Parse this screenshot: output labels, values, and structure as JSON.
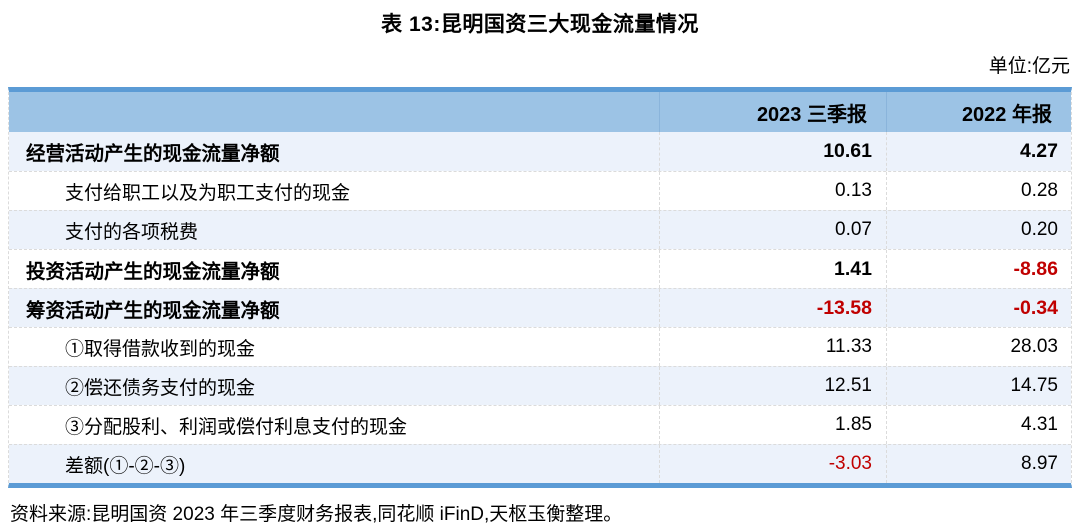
{
  "title": "表 13:昆明国资三大现金流量情况",
  "unit_label": "单位:亿元",
  "header": {
    "label_col": "",
    "col_2023": "2023 三季报",
    "col_2022": "2022 年报"
  },
  "rows": [
    {
      "label": "经营活动产生的现金流量净额",
      "bold": true,
      "indent": false,
      "values": [
        {
          "text": "10.61",
          "red": false
        },
        {
          "text": "4.27",
          "red": false
        }
      ]
    },
    {
      "label": "支付给职工以及为职工支付的现金",
      "bold": false,
      "indent": true,
      "values": [
        {
          "text": "0.13",
          "red": false
        },
        {
          "text": "0.28",
          "red": false
        }
      ]
    },
    {
      "label": "支付的各项税费",
      "bold": false,
      "indent": true,
      "values": [
        {
          "text": "0.07",
          "red": false
        },
        {
          "text": "0.20",
          "red": false
        }
      ]
    },
    {
      "label": "投资活动产生的现金流量净额",
      "bold": true,
      "indent": false,
      "values": [
        {
          "text": "1.41",
          "red": false
        },
        {
          "text": "-8.86",
          "red": true
        }
      ]
    },
    {
      "label": "筹资活动产生的现金流量净额",
      "bold": true,
      "indent": false,
      "values": [
        {
          "text": "-13.58",
          "red": true
        },
        {
          "text": "-0.34",
          "red": true
        }
      ]
    },
    {
      "label": "①取得借款收到的现金",
      "bold": false,
      "indent": true,
      "values": [
        {
          "text": "11.33",
          "red": false
        },
        {
          "text": "28.03",
          "red": false
        }
      ]
    },
    {
      "label": "②偿还债务支付的现金",
      "bold": false,
      "indent": true,
      "values": [
        {
          "text": "12.51",
          "red": false
        },
        {
          "text": "14.75",
          "red": false
        }
      ]
    },
    {
      "label": "③分配股利、利润或偿付利息支付的现金",
      "bold": false,
      "indent": true,
      "values": [
        {
          "text": "1.85",
          "red": false
        },
        {
          "text": "4.31",
          "red": false
        }
      ]
    },
    {
      "label": "差额(①-②-③)",
      "bold": false,
      "indent": true,
      "values": [
        {
          "text": "-3.03",
          "red": true
        },
        {
          "text": "8.97",
          "red": false
        }
      ]
    }
  ],
  "source": "资料来源:昆明国资 2023 年三季度财务报表,同花顺 iFinD,天枢玉衡整理。",
  "colors": {
    "table_border": "#5B9BD5",
    "header_bg": "#9CC3E5",
    "stripe_bg": "#ECF2FB",
    "negative_red": "#C00000"
  }
}
